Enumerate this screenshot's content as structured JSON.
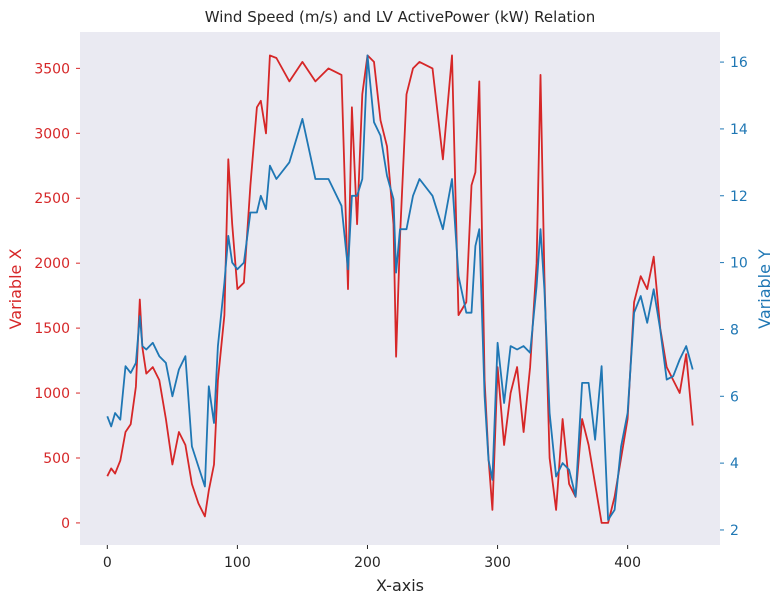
{
  "chart_data": {
    "type": "line",
    "title": "Wind Speed (m/s) and LV ActivePower (kW) Relation",
    "xlabel": "X-axis",
    "ylabel_left": "Variable X",
    "ylabel_right": "Variable Y",
    "xlim": [
      -21,
      471
    ],
    "ylim_left": [
      -170,
      3780
    ],
    "ylim_right": [
      1.55,
      16.9
    ],
    "xticks": [
      0,
      100,
      200,
      300,
      400
    ],
    "yticks_left": [
      0,
      500,
      1000,
      1500,
      2000,
      2500,
      3000,
      3500
    ],
    "yticks_right": [
      2,
      4,
      6,
      8,
      10,
      12,
      14,
      16
    ],
    "grid": false,
    "legend": "none",
    "colors": {
      "left_series": "#d62728",
      "right_series": "#1f77b4",
      "plot_background": "#eaeaf2",
      "text": "#262626"
    },
    "series": [
      {
        "axis": "left",
        "x": [
          0,
          3,
          6,
          10,
          14,
          18,
          22,
          25,
          27,
          30,
          35,
          40,
          45,
          50,
          55,
          60,
          65,
          70,
          75,
          78,
          82,
          85,
          90,
          93,
          96,
          100,
          105,
          110,
          115,
          118,
          122,
          125,
          130,
          140,
          150,
          160,
          170,
          180,
          185,
          188,
          192,
          196,
          200,
          205,
          210,
          215,
          220,
          222,
          225,
          230,
          235,
          240,
          250,
          258,
          265,
          270,
          276,
          280,
          283,
          286,
          290,
          293,
          296,
          300,
          305,
          310,
          315,
          320,
          325,
          330,
          333,
          336,
          340,
          345,
          350,
          355,
          360,
          365,
          370,
          375,
          380,
          385,
          390,
          395,
          400,
          405,
          410,
          415,
          420,
          425,
          430,
          435,
          440,
          445,
          450
        ],
        "values": [
          360,
          420,
          380,
          480,
          700,
          760,
          1050,
          1720,
          1350,
          1150,
          1200,
          1100,
          800,
          450,
          700,
          600,
          300,
          150,
          50,
          250,
          450,
          1100,
          1600,
          2800,
          2300,
          1800,
          1850,
          2600,
          3200,
          3250,
          3000,
          3600,
          3580,
          3400,
          3550,
          3400,
          3500,
          3450,
          1800,
          3200,
          2300,
          3300,
          3600,
          3550,
          3100,
          2900,
          2300,
          1280,
          2200,
          3300,
          3500,
          3550,
          3500,
          2800,
          3600,
          1600,
          1700,
          2600,
          2700,
          3400,
          1100,
          500,
          100,
          1200,
          600,
          1000,
          1200,
          700,
          1200,
          2000,
          3450,
          1900,
          500,
          100,
          800,
          300,
          200,
          800,
          600,
          300,
          0,
          0,
          200,
          500,
          800,
          1700,
          1900,
          1800,
          2050,
          1500,
          1200,
          1100,
          1000,
          1300,
          750
        ]
      },
      {
        "axis": "right",
        "x": [
          0,
          3,
          6,
          10,
          14,
          18,
          22,
          25,
          27,
          30,
          35,
          40,
          45,
          50,
          55,
          60,
          65,
          70,
          75,
          78,
          82,
          85,
          90,
          93,
          96,
          100,
          105,
          110,
          115,
          118,
          122,
          125,
          130,
          140,
          150,
          160,
          170,
          180,
          185,
          188,
          192,
          196,
          200,
          205,
          210,
          215,
          220,
          222,
          225,
          230,
          235,
          240,
          250,
          258,
          265,
          270,
          276,
          280,
          283,
          286,
          290,
          293,
          296,
          300,
          305,
          310,
          315,
          320,
          325,
          330,
          333,
          336,
          340,
          345,
          350,
          355,
          360,
          365,
          370,
          375,
          380,
          385,
          390,
          395,
          400,
          405,
          410,
          415,
          420,
          425,
          430,
          435,
          440,
          445,
          450
        ],
        "values": [
          5.4,
          5.1,
          5.5,
          5.3,
          6.9,
          6.7,
          7.0,
          8.4,
          7.5,
          7.4,
          7.6,
          7.2,
          7.0,
          6.0,
          6.8,
          7.2,
          4.5,
          3.9,
          3.3,
          6.3,
          5.2,
          7.5,
          9.4,
          10.8,
          10.0,
          9.8,
          10.0,
          11.5,
          11.5,
          12.0,
          11.6,
          12.9,
          12.5,
          13.0,
          14.3,
          12.5,
          12.5,
          11.7,
          9.8,
          12.0,
          12.0,
          12.5,
          16.2,
          14.2,
          13.8,
          12.6,
          11.9,
          9.7,
          11.0,
          11.0,
          12.0,
          12.5,
          12.0,
          11.0,
          12.5,
          9.6,
          8.5,
          8.5,
          10.5,
          11.0,
          6.0,
          4.1,
          3.5,
          7.6,
          5.8,
          7.5,
          7.4,
          7.5,
          7.3,
          9.3,
          11.0,
          9.2,
          5.5,
          3.6,
          4.0,
          3.8,
          3.0,
          6.4,
          6.4,
          4.7,
          6.9,
          2.3,
          2.6,
          4.5,
          5.5,
          8.5,
          9.0,
          8.2,
          9.2,
          8.0,
          6.5,
          6.6,
          7.1,
          7.5,
          6.8
        ]
      }
    ]
  }
}
